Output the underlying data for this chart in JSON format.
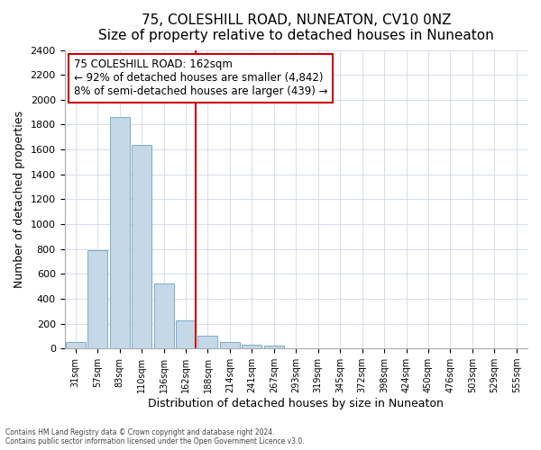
{
  "title": "75, COLESHILL ROAD, NUNEATON, CV10 0NZ",
  "subtitle": "Size of property relative to detached houses in Nuneaton",
  "xlabel": "Distribution of detached houses by size in Nuneaton",
  "ylabel": "Number of detached properties",
  "categories": [
    "31sqm",
    "57sqm",
    "83sqm",
    "110sqm",
    "136sqm",
    "162sqm",
    "188sqm",
    "214sqm",
    "241sqm",
    "267sqm",
    "293sqm",
    "319sqm",
    "345sqm",
    "372sqm",
    "398sqm",
    "424sqm",
    "450sqm",
    "476sqm",
    "503sqm",
    "529sqm",
    "555sqm"
  ],
  "values": [
    50,
    790,
    1860,
    1640,
    520,
    225,
    100,
    50,
    30,
    20,
    0,
    0,
    0,
    0,
    0,
    0,
    0,
    0,
    0,
    0,
    0
  ],
  "bar_color": "#c5d8e8",
  "bar_edge_color": "#7baac9",
  "highlight_index": 5,
  "highlight_color": "#cc0000",
  "annotation_line1": "75 COLESHILL ROAD: 162sqm",
  "annotation_line2": "← 92% of detached houses are smaller (4,842)",
  "annotation_line3": "8% of semi-detached houses are larger (439) →",
  "annotation_box_color": "#ffffff",
  "annotation_box_edge": "#cc0000",
  "ylim": [
    0,
    2400
  ],
  "yticks": [
    0,
    200,
    400,
    600,
    800,
    1000,
    1200,
    1400,
    1600,
    1800,
    2000,
    2200,
    2400
  ],
  "footer1": "Contains HM Land Registry data © Crown copyright and database right 2024.",
  "footer2": "Contains public sector information licensed under the Open Government Licence v3.0.",
  "bg_color": "#ffffff",
  "grid_color": "#d0d8e8",
  "title_fontsize": 11,
  "label_fontsize": 9,
  "annotation_fontsize": 8.5
}
